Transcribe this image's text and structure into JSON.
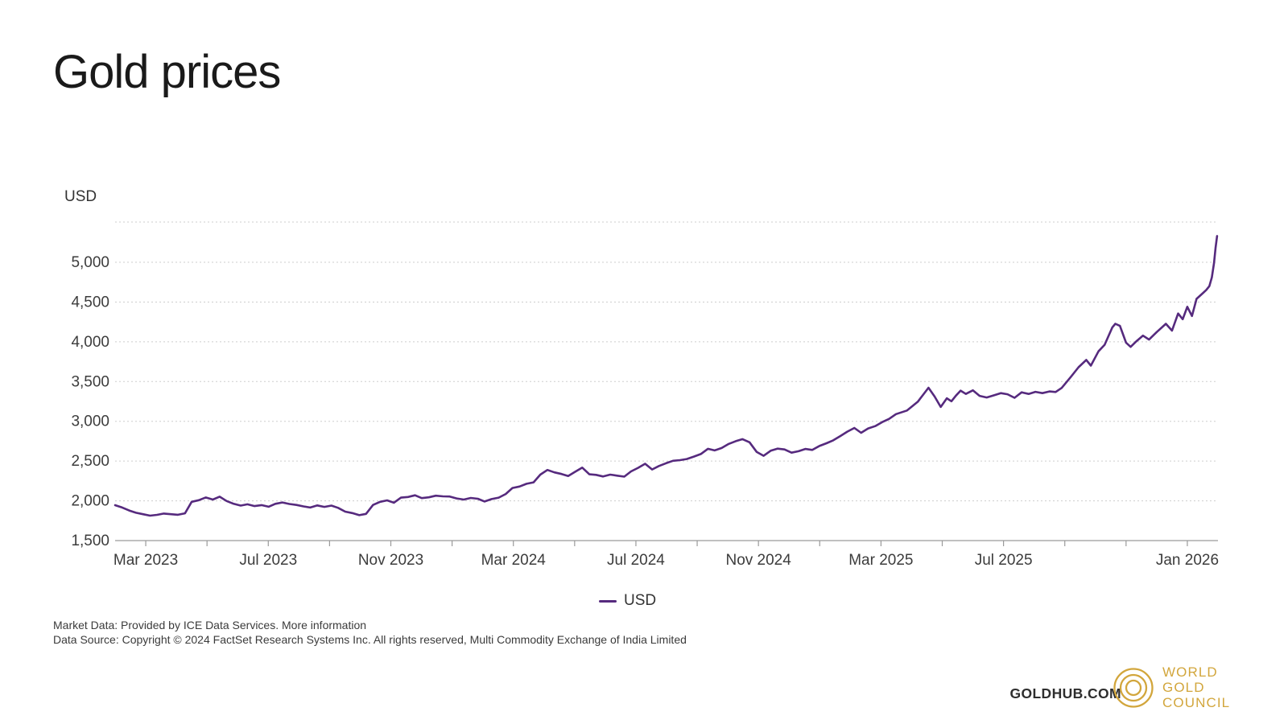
{
  "page_title": "Gold prices",
  "colors": {
    "accent_purple": "#562a7e",
    "gold": "#D2A63C",
    "gridline": "#cdcdcd",
    "axis": "#9a9a9a",
    "text": "#3c3c3c"
  },
  "y_axis_title": "USD",
  "legend": {
    "label": "USD",
    "swatch_color": "#562a7e"
  },
  "footer": {
    "line1_text": "Market Data: Provided by ICE Data Services. ",
    "more_info_label": "More information",
    "line2_text": "Data Source: Copyright © 2024 FactSet Research Systems Inc. All rights reserved, Multi Commodity Exchange of India Limited"
  },
  "branding": {
    "goldhub_label": "GOLDHUB.COM",
    "wgc_lines": {
      "0": "WORLD",
      "1": "GOLD",
      "2": "COUNCIL"
    }
  },
  "chart_data": {
    "type": "line",
    "title": "Gold prices",
    "xlabel": "",
    "ylabel": "USD",
    "x_unit": "months since Feb 2023",
    "xlim": [
      0,
      36
    ],
    "ylim": [
      1500,
      5506
    ],
    "grid": "dotted horizontal",
    "legend_position": "bottom-center",
    "y_ticks": [
      {
        "v": 1500,
        "label": "1,500"
      },
      {
        "v": 2000,
        "label": "2,000"
      },
      {
        "v": 2500,
        "label": "2,500"
      },
      {
        "v": 3000,
        "label": "3,000"
      },
      {
        "v": 3500,
        "label": "3,500"
      },
      {
        "v": 4000,
        "label": "4,000"
      },
      {
        "v": 4500,
        "label": "4,500"
      },
      {
        "v": 5000,
        "label": "5,000"
      }
    ],
    "x_ticks": [
      {
        "m": 1,
        "label": "Mar 2023"
      },
      {
        "m": 5,
        "label": "Jul 2023"
      },
      {
        "m": 9,
        "label": "Nov 2023"
      },
      {
        "m": 13,
        "label": "Mar 2024"
      },
      {
        "m": 17,
        "label": "Jul 2024"
      },
      {
        "m": 21,
        "label": "Nov 2024"
      },
      {
        "m": 25,
        "label": "Mar 2025"
      },
      {
        "m": 29,
        "label": "Jul 2025"
      },
      {
        "m": 35,
        "label": "Jan 2026"
      }
    ],
    "x_minor_tick_months": [
      1,
      3,
      5,
      7,
      9,
      11,
      13,
      15,
      17,
      19,
      21,
      23,
      25,
      27,
      29,
      31,
      33,
      35
    ],
    "series": [
      {
        "name": "USD",
        "color": "#562a7e",
        "points": [
          [
            0,
            1945
          ],
          [
            0.23,
            1916
          ],
          [
            0.46,
            1878
          ],
          [
            0.68,
            1850
          ],
          [
            0.91,
            1832
          ],
          [
            1.14,
            1814
          ],
          [
            1.37,
            1824
          ],
          [
            1.59,
            1840
          ],
          [
            1.82,
            1832
          ],
          [
            2.05,
            1825
          ],
          [
            2.28,
            1843
          ],
          [
            2.5,
            1988
          ],
          [
            2.73,
            2008
          ],
          [
            2.96,
            2042
          ],
          [
            3.19,
            2016
          ],
          [
            3.41,
            2052
          ],
          [
            3.64,
            1998
          ],
          [
            3.87,
            1962
          ],
          [
            4.1,
            1940
          ],
          [
            4.32,
            1956
          ],
          [
            4.55,
            1934
          ],
          [
            4.78,
            1946
          ],
          [
            5.01,
            1926
          ],
          [
            5.23,
            1962
          ],
          [
            5.46,
            1980
          ],
          [
            5.69,
            1960
          ],
          [
            5.92,
            1948
          ],
          [
            6.15,
            1930
          ],
          [
            6.37,
            1916
          ],
          [
            6.6,
            1942
          ],
          [
            6.83,
            1924
          ],
          [
            7.06,
            1940
          ],
          [
            7.28,
            1912
          ],
          [
            7.51,
            1864
          ],
          [
            7.74,
            1846
          ],
          [
            7.97,
            1820
          ],
          [
            8.19,
            1836
          ],
          [
            8.42,
            1948
          ],
          [
            8.65,
            1988
          ],
          [
            8.88,
            2006
          ],
          [
            9.1,
            1976
          ],
          [
            9.33,
            2040
          ],
          [
            9.56,
            2048
          ],
          [
            9.79,
            2070
          ],
          [
            10.01,
            2034
          ],
          [
            10.24,
            2044
          ],
          [
            10.47,
            2064
          ],
          [
            10.7,
            2056
          ],
          [
            10.92,
            2054
          ],
          [
            11.15,
            2030
          ],
          [
            11.38,
            2016
          ],
          [
            11.61,
            2036
          ],
          [
            11.84,
            2026
          ],
          [
            12.06,
            1992
          ],
          [
            12.29,
            2022
          ],
          [
            12.52,
            2040
          ],
          [
            12.75,
            2086
          ],
          [
            12.97,
            2162
          ],
          [
            13.2,
            2180
          ],
          [
            13.43,
            2214
          ],
          [
            13.66,
            2232
          ],
          [
            13.88,
            2330
          ],
          [
            14.11,
            2388
          ],
          [
            14.34,
            2358
          ],
          [
            14.57,
            2338
          ],
          [
            14.79,
            2312
          ],
          [
            15.02,
            2366
          ],
          [
            15.25,
            2418
          ],
          [
            15.48,
            2334
          ],
          [
            15.7,
            2326
          ],
          [
            15.93,
            2306
          ],
          [
            16.16,
            2330
          ],
          [
            16.39,
            2316
          ],
          [
            16.62,
            2304
          ],
          [
            16.84,
            2370
          ],
          [
            17.07,
            2414
          ],
          [
            17.3,
            2466
          ],
          [
            17.53,
            2394
          ],
          [
            17.75,
            2438
          ],
          [
            17.98,
            2472
          ],
          [
            18.21,
            2504
          ],
          [
            18.44,
            2512
          ],
          [
            18.66,
            2526
          ],
          [
            18.89,
            2556
          ],
          [
            19.12,
            2588
          ],
          [
            19.35,
            2654
          ],
          [
            19.57,
            2634
          ],
          [
            19.8,
            2664
          ],
          [
            20.03,
            2716
          ],
          [
            20.26,
            2750
          ],
          [
            20.48,
            2776
          ],
          [
            20.71,
            2736
          ],
          [
            20.94,
            2616
          ],
          [
            21.17,
            2566
          ],
          [
            21.4,
            2630
          ],
          [
            21.62,
            2656
          ],
          [
            21.85,
            2646
          ],
          [
            22.08,
            2606
          ],
          [
            22.31,
            2624
          ],
          [
            22.53,
            2652
          ],
          [
            22.76,
            2640
          ],
          [
            22.99,
            2690
          ],
          [
            23.22,
            2724
          ],
          [
            23.44,
            2760
          ],
          [
            23.67,
            2814
          ],
          [
            23.9,
            2870
          ],
          [
            24.13,
            2916
          ],
          [
            24.35,
            2856
          ],
          [
            24.58,
            2910
          ],
          [
            24.81,
            2940
          ],
          [
            25.04,
            2990
          ],
          [
            25.26,
            3030
          ],
          [
            25.49,
            3090
          ],
          [
            25.85,
            3136
          ],
          [
            26.2,
            3246
          ],
          [
            26.55,
            3422
          ],
          [
            26.75,
            3312
          ],
          [
            26.95,
            3180
          ],
          [
            27.15,
            3290
          ],
          [
            27.3,
            3252
          ],
          [
            27.45,
            3324
          ],
          [
            27.6,
            3386
          ],
          [
            27.77,
            3344
          ],
          [
            28.0,
            3390
          ],
          [
            28.22,
            3320
          ],
          [
            28.45,
            3300
          ],
          [
            28.68,
            3326
          ],
          [
            28.91,
            3354
          ],
          [
            29.13,
            3340
          ],
          [
            29.36,
            3296
          ],
          [
            29.59,
            3364
          ],
          [
            29.82,
            3344
          ],
          [
            30.04,
            3370
          ],
          [
            30.27,
            3354
          ],
          [
            30.5,
            3376
          ],
          [
            30.7,
            3368
          ],
          [
            30.9,
            3420
          ],
          [
            31.2,
            3560
          ],
          [
            31.45,
            3680
          ],
          [
            31.7,
            3772
          ],
          [
            31.85,
            3700
          ],
          [
            32.1,
            3880
          ],
          [
            32.3,
            3962
          ],
          [
            32.55,
            4180
          ],
          [
            32.65,
            4226
          ],
          [
            32.8,
            4200
          ],
          [
            33.0,
            3990
          ],
          [
            33.15,
            3936
          ],
          [
            33.35,
            4012
          ],
          [
            33.55,
            4078
          ],
          [
            33.75,
            4028
          ],
          [
            34.0,
            4122
          ],
          [
            34.3,
            4226
          ],
          [
            34.5,
            4140
          ],
          [
            34.7,
            4356
          ],
          [
            34.85,
            4284
          ],
          [
            35.0,
            4440
          ],
          [
            35.15,
            4324
          ],
          [
            35.3,
            4540
          ],
          [
            35.5,
            4610
          ],
          [
            35.62,
            4652
          ],
          [
            35.72,
            4700
          ],
          [
            35.8,
            4810
          ],
          [
            35.87,
            4990
          ],
          [
            35.92,
            5180
          ],
          [
            35.97,
            5330
          ]
        ]
      }
    ]
  }
}
